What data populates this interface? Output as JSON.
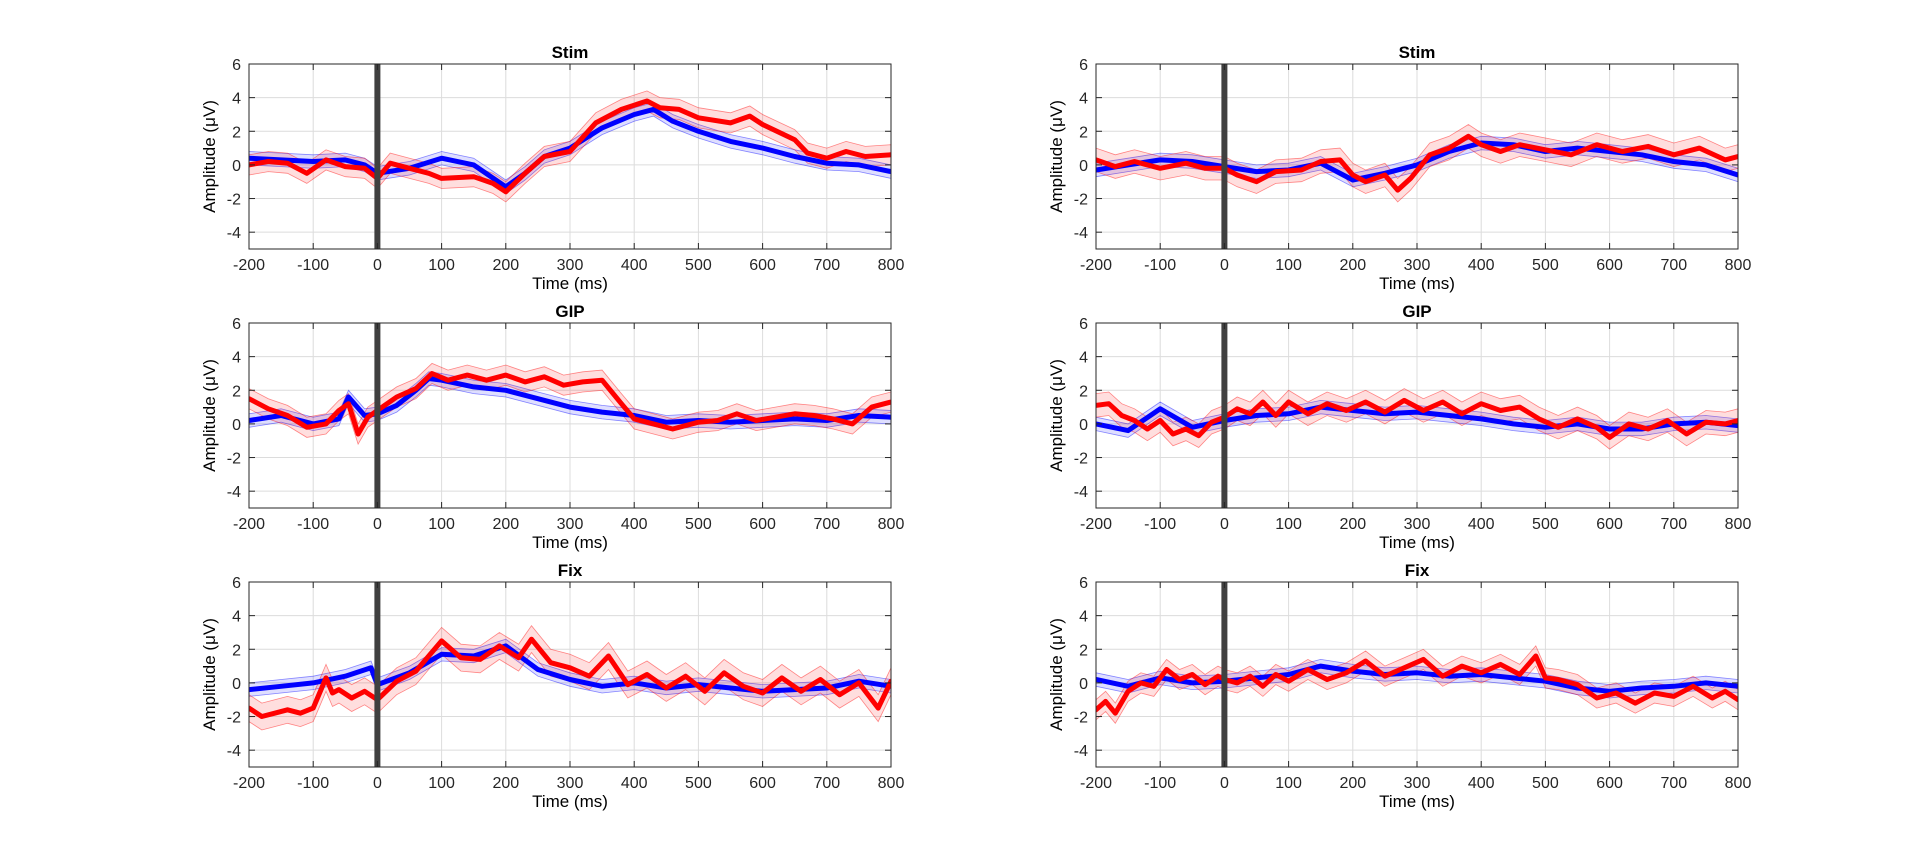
{
  "chart_data": [
    {
      "type": "line",
      "title": "Stim",
      "xlabel": "Time (ms)",
      "ylabel": "Amplitude (μV)",
      "xlim": [
        -200,
        800
      ],
      "ylim": [
        -5,
        6
      ],
      "xticks": [
        -200,
        -100,
        0,
        100,
        200,
        300,
        400,
        500,
        600,
        700,
        800
      ],
      "yticks": [
        -4,
        -2,
        0,
        2,
        4,
        6
      ],
      "grid": true,
      "marker_x": 0,
      "series": [
        {
          "color": "#0000ff",
          "x": [
            -200,
            -150,
            -100,
            -50,
            -20,
            0,
            50,
            100,
            150,
            200,
            230,
            260,
            300,
            350,
            400,
            430,
            460,
            500,
            550,
            600,
            650,
            700,
            750,
            800
          ],
          "y": [
            0.4,
            0.3,
            0.2,
            0.3,
            0,
            -0.5,
            -0.2,
            0.4,
            0,
            -1.3,
            -0.5,
            0.5,
            1.0,
            2.2,
            3.0,
            3.3,
            2.6,
            2.0,
            1.4,
            1.0,
            0.5,
            0.1,
            0,
            -0.4
          ],
          "band": 0.4
        },
        {
          "color": "#ff0000",
          "x": [
            -200,
            -170,
            -140,
            -110,
            -80,
            -50,
            -20,
            0,
            20,
            50,
            80,
            100,
            150,
            180,
            200,
            230,
            260,
            300,
            340,
            380,
            420,
            440,
            470,
            500,
            550,
            580,
            600,
            650,
            670,
            700,
            730,
            760,
            800
          ],
          "y": [
            0,
            0.2,
            0.1,
            -0.5,
            0.3,
            -0.1,
            -0.2,
            -0.8,
            0.1,
            -0.2,
            -0.5,
            -0.8,
            -0.7,
            -1.1,
            -1.6,
            -0.5,
            0.5,
            0.8,
            2.5,
            3.3,
            3.8,
            3.4,
            3.3,
            2.8,
            2.5,
            2.9,
            2.4,
            1.5,
            0.7,
            0.4,
            0.8,
            0.5,
            0.6
          ],
          "band": 0.6
        }
      ]
    },
    {
      "type": "line",
      "title": "Stim",
      "xlabel": "Time (ms)",
      "ylabel": "Amplitude (μV)",
      "xlim": [
        -200,
        800
      ],
      "ylim": [
        -5,
        6
      ],
      "xticks": [
        -200,
        -100,
        0,
        100,
        200,
        300,
        400,
        500,
        600,
        700,
        800
      ],
      "yticks": [
        -4,
        -2,
        0,
        2,
        4,
        6
      ],
      "grid": true,
      "marker_x": 0,
      "series": [
        {
          "color": "#0000ff",
          "x": [
            -200,
            -150,
            -100,
            -50,
            0,
            50,
            100,
            150,
            200,
            250,
            300,
            350,
            400,
            450,
            500,
            550,
            600,
            650,
            700,
            750,
            800
          ],
          "y": [
            -0.3,
            0,
            0.3,
            0.2,
            -0.1,
            -0.4,
            -0.3,
            0.1,
            -0.9,
            -0.5,
            0,
            0.8,
            1.3,
            1.2,
            0.8,
            1.0,
            0.8,
            0.6,
            0.2,
            0,
            -0.6
          ],
          "band": 0.4
        },
        {
          "color": "#ff0000",
          "x": [
            -200,
            -170,
            -140,
            -100,
            -60,
            -30,
            0,
            20,
            50,
            80,
            120,
            150,
            180,
            200,
            220,
            250,
            270,
            290,
            320,
            350,
            380,
            400,
            430,
            460,
            500,
            540,
            580,
            620,
            660,
            700,
            740,
            780,
            800
          ],
          "y": [
            0.3,
            -0.1,
            0.2,
            -0.2,
            0.1,
            -0.2,
            -0.2,
            -0.6,
            -1.0,
            -0.4,
            -0.3,
            0.2,
            0.3,
            -0.6,
            -1.0,
            -0.6,
            -1.5,
            -0.8,
            0.6,
            1.0,
            1.7,
            1.2,
            0.8,
            1.2,
            0.9,
            0.6,
            1.2,
            0.8,
            1.1,
            0.6,
            1.0,
            0.3,
            0.5
          ],
          "band": 0.7
        }
      ]
    },
    {
      "type": "line",
      "title": "GIP",
      "xlabel": "Time (ms)",
      "ylabel": "Amplitude (μV)",
      "xlim": [
        -200,
        800
      ],
      "ylim": [
        -5,
        6
      ],
      "xticks": [
        -200,
        -100,
        0,
        100,
        200,
        300,
        400,
        500,
        600,
        700,
        800
      ],
      "yticks": [
        -4,
        -2,
        0,
        2,
        4,
        6
      ],
      "grid": true,
      "marker_x": 0,
      "series": [
        {
          "color": "#0000ff",
          "x": [
            -200,
            -150,
            -100,
            -60,
            -45,
            -20,
            0,
            30,
            60,
            80,
            100,
            150,
            200,
            250,
            300,
            350,
            400,
            450,
            500,
            550,
            600,
            650,
            700,
            750,
            800
          ],
          "y": [
            0.2,
            0.5,
            0,
            0.3,
            1.6,
            0.5,
            0.6,
            1.1,
            2.0,
            2.7,
            2.6,
            2.2,
            2.0,
            1.5,
            1.0,
            0.7,
            0.5,
            0.1,
            0.2,
            0.1,
            0.2,
            0.3,
            0.2,
            0.5,
            0.4
          ],
          "band": 0.4
        },
        {
          "color": "#ff0000",
          "x": [
            -200,
            -170,
            -140,
            -110,
            -80,
            -60,
            -45,
            -30,
            -15,
            0,
            30,
            60,
            85,
            110,
            140,
            170,
            200,
            230,
            260,
            290,
            320,
            350,
            380,
            400,
            430,
            460,
            500,
            530,
            560,
            590,
            620,
            650,
            680,
            710,
            740,
            770,
            800
          ],
          "y": [
            1.5,
            0.9,
            0.5,
            -0.2,
            0,
            0.8,
            1.2,
            -0.6,
            0.4,
            0.8,
            1.6,
            2.1,
            3.0,
            2.6,
            2.9,
            2.6,
            2.9,
            2.5,
            2.8,
            2.3,
            2.5,
            2.6,
            1.2,
            0.3,
            0,
            -0.3,
            0.1,
            0.2,
            0.6,
            0.2,
            0.4,
            0.6,
            0.5,
            0.3,
            0,
            1.0,
            1.3
          ],
          "band": 0.6
        }
      ]
    },
    {
      "type": "line",
      "title": "GIP",
      "xlabel": "Time (ms)",
      "ylabel": "Amplitude (μV)",
      "xlim": [
        -200,
        800
      ],
      "ylim": [
        -5,
        6
      ],
      "xticks": [
        -200,
        -100,
        0,
        100,
        200,
        300,
        400,
        500,
        600,
        700,
        800
      ],
      "yticks": [
        -4,
        -2,
        0,
        2,
        4,
        6
      ],
      "grid": true,
      "marker_x": 0,
      "series": [
        {
          "color": "#0000ff",
          "x": [
            -200,
            -150,
            -100,
            -50,
            0,
            50,
            100,
            150,
            200,
            250,
            300,
            350,
            400,
            450,
            500,
            550,
            600,
            650,
            700,
            750,
            800
          ],
          "y": [
            0,
            -0.4,
            0.9,
            -0.2,
            0.2,
            0.5,
            0.6,
            1.0,
            0.8,
            0.6,
            0.7,
            0.5,
            0.3,
            0,
            -0.2,
            0,
            -0.3,
            -0.3,
            0,
            0.1,
            -0.1
          ],
          "band": 0.4
        },
        {
          "color": "#ff0000",
          "x": [
            -200,
            -180,
            -160,
            -140,
            -120,
            -100,
            -80,
            -60,
            -40,
            -20,
            0,
            20,
            40,
            60,
            80,
            100,
            130,
            160,
            190,
            220,
            250,
            280,
            310,
            340,
            370,
            400,
            430,
            460,
            490,
            520,
            550,
            580,
            600,
            630,
            660,
            690,
            720,
            750,
            780,
            800
          ],
          "y": [
            1.1,
            1.2,
            0.5,
            0.2,
            -0.3,
            0.2,
            -0.6,
            -0.3,
            -0.7,
            0.1,
            0.4,
            0.9,
            0.6,
            1.3,
            0.5,
            1.3,
            0.6,
            1.2,
            0.8,
            1.3,
            0.7,
            1.4,
            0.8,
            1.3,
            0.6,
            1.2,
            0.8,
            1.0,
            0.3,
            -0.2,
            0.3,
            -0.2,
            -0.8,
            0,
            -0.3,
            0.2,
            -0.6,
            0.1,
            0,
            0.2
          ],
          "band": 0.7
        }
      ]
    },
    {
      "type": "line",
      "title": "Fix",
      "xlabel": "Time (ms)",
      "ylabel": "Amplitude (μV)",
      "xlim": [
        -200,
        800
      ],
      "ylim": [
        -5,
        6
      ],
      "xticks": [
        -200,
        -100,
        0,
        100,
        200,
        300,
        400,
        500,
        600,
        700,
        800
      ],
      "yticks": [
        -4,
        -2,
        0,
        2,
        4,
        6
      ],
      "grid": true,
      "marker_x": 0,
      "series": [
        {
          "color": "#0000ff",
          "x": [
            -200,
            -150,
            -100,
            -50,
            -10,
            0,
            50,
            100,
            150,
            200,
            250,
            300,
            350,
            400,
            450,
            500,
            550,
            600,
            650,
            700,
            750,
            800
          ],
          "y": [
            -0.4,
            -0.2,
            0,
            0.4,
            0.9,
            -0.1,
            0.6,
            1.7,
            1.6,
            2.2,
            0.8,
            0.2,
            -0.2,
            0,
            -0.3,
            -0.1,
            -0.3,
            -0.5,
            -0.4,
            -0.3,
            0.1,
            -0.2
          ],
          "band": 0.4
        },
        {
          "color": "#ff0000",
          "x": [
            -200,
            -180,
            -160,
            -140,
            -120,
            -100,
            -80,
            -70,
            -60,
            -40,
            -20,
            0,
            30,
            60,
            100,
            130,
            160,
            190,
            220,
            240,
            270,
            300,
            330,
            360,
            390,
            420,
            450,
            480,
            510,
            540,
            570,
            600,
            630,
            660,
            690,
            720,
            750,
            780,
            800
          ],
          "y": [
            -1.5,
            -2.0,
            -1.8,
            -1.6,
            -1.8,
            -1.5,
            0.3,
            -0.6,
            -0.4,
            -0.9,
            -0.5,
            -1.0,
            0.1,
            0.7,
            2.5,
            1.5,
            1.4,
            2.2,
            1.5,
            2.6,
            1.2,
            0.9,
            0.4,
            1.6,
            -0.1,
            0.5,
            -0.3,
            0.4,
            -0.5,
            0.6,
            -0.2,
            -0.6,
            0.3,
            -0.5,
            0.2,
            -0.7,
            0,
            -1.5,
            0.1
          ],
          "band": 0.8
        }
      ]
    },
    {
      "type": "line",
      "title": "Fix",
      "xlabel": "Time (ms)",
      "ylabel": "Amplitude (μV)",
      "xlim": [
        -200,
        800
      ],
      "ylim": [
        -5,
        6
      ],
      "xticks": [
        -200,
        -100,
        0,
        100,
        200,
        300,
        400,
        500,
        600,
        700,
        800
      ],
      "yticks": [
        -4,
        -2,
        0,
        2,
        4,
        6
      ],
      "grid": true,
      "marker_x": 0,
      "series": [
        {
          "color": "#0000ff",
          "x": [
            -200,
            -150,
            -100,
            -50,
            0,
            50,
            100,
            150,
            200,
            250,
            300,
            350,
            400,
            450,
            500,
            550,
            600,
            650,
            700,
            750,
            800
          ],
          "y": [
            0.2,
            -0.2,
            0.3,
            0,
            0.1,
            0.3,
            0.5,
            1.0,
            0.7,
            0.5,
            0.6,
            0.4,
            0.5,
            0.3,
            0.1,
            -0.3,
            -0.5,
            -0.3,
            -0.2,
            0,
            -0.2
          ],
          "band": 0.4
        },
        {
          "color": "#ff0000",
          "x": [
            -200,
            -185,
            -170,
            -150,
            -130,
            -110,
            -90,
            -70,
            -50,
            -30,
            -10,
            0,
            20,
            40,
            60,
            80,
            100,
            130,
            160,
            190,
            220,
            250,
            280,
            310,
            340,
            370,
            400,
            430,
            460,
            485,
            500,
            520,
            550,
            580,
            610,
            640,
            670,
            700,
            730,
            760,
            780,
            800
          ],
          "y": [
            -1.6,
            -1.1,
            -1.8,
            -0.5,
            0,
            -0.2,
            0.8,
            0.2,
            0.5,
            -0.1,
            0.4,
            0.2,
            0,
            0.4,
            -0.2,
            0.5,
            0.1,
            0.8,
            0.2,
            0.6,
            1.3,
            0.4,
            0.9,
            1.4,
            0.4,
            1.0,
            0.6,
            1.1,
            0.5,
            1.6,
            0.3,
            0.2,
            -0.1,
            -0.9,
            -0.6,
            -1.2,
            -0.6,
            -0.8,
            -0.2,
            -0.9,
            -0.5,
            -1.0
          ],
          "band": 0.6
        }
      ]
    }
  ]
}
